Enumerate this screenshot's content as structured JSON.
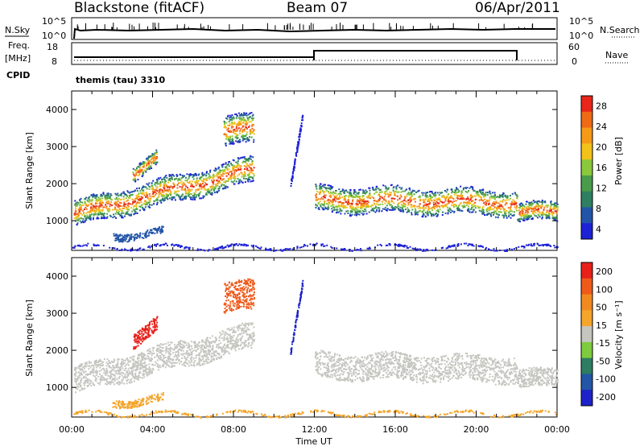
{
  "header": {
    "station": "Blackstone (fitACF)",
    "beam": "Beam 07",
    "date": "06/Apr/2011"
  },
  "strip": {
    "nsky_label": "N.Sky",
    "nsearch_label": "N.Search",
    "noise_ticks": [
      "10^5",
      "10^0"
    ],
    "freq_label": "Freq.",
    "freq_unit": "[MHz]",
    "freq_ticks": [
      "18",
      "8"
    ],
    "nave_label": "Nave",
    "nave_ticks": [
      "60",
      "0"
    ],
    "cpid_label": "CPID",
    "cpid_value": "themis (tau) 3310"
  },
  "colors": {
    "power": [
      "#1d22d6",
      "#2255a8",
      "#2f7f63",
      "#4a9c4a",
      "#8cc83c",
      "#f2c21a",
      "#f59a17",
      "#f06a16",
      "#e8261a"
    ],
    "velocity": [
      "#1d22c8",
      "#2356a6",
      "#2f7d62",
      "#7ecb3f",
      "#c6c6c0",
      "#f4a52a",
      "#f08a20",
      "#ef5a1a",
      "#e8201a"
    ]
  },
  "chart_data": [
    {
      "type": "heatmap",
      "panel": "power",
      "ylabel": "Slant Range [km]",
      "y_ticks": [
        1000,
        2000,
        3000,
        4000
      ],
      "ylim": [
        200,
        4500
      ],
      "xlim": [
        "00:00",
        "24:00"
      ],
      "x_ticks": [
        "00:00",
        "04:00",
        "08:00",
        "12:00",
        "16:00",
        "20:00",
        "00:00"
      ],
      "colorbar_label": "Power [dB]",
      "colorbar_ticks": [
        "28",
        "24",
        "20",
        "16",
        "12",
        "8",
        "4"
      ]
    },
    {
      "type": "heatmap",
      "panel": "velocity",
      "ylabel": "Slant Range [km]",
      "y_ticks": [
        1000,
        2000,
        3000,
        4000
      ],
      "ylim": [
        200,
        4500
      ],
      "xlim": [
        "00:00",
        "24:00"
      ],
      "x_ticks": [
        "00:00",
        "04:00",
        "08:00",
        "12:00",
        "16:00",
        "20:00",
        "00:00"
      ],
      "xlabel": "Time UT",
      "colorbar_label": "Velocity [m s⁻¹]",
      "colorbar_ticks": [
        "200",
        "100",
        "50",
        "15",
        "-15",
        "-50",
        "-100",
        "-200"
      ]
    }
  ]
}
